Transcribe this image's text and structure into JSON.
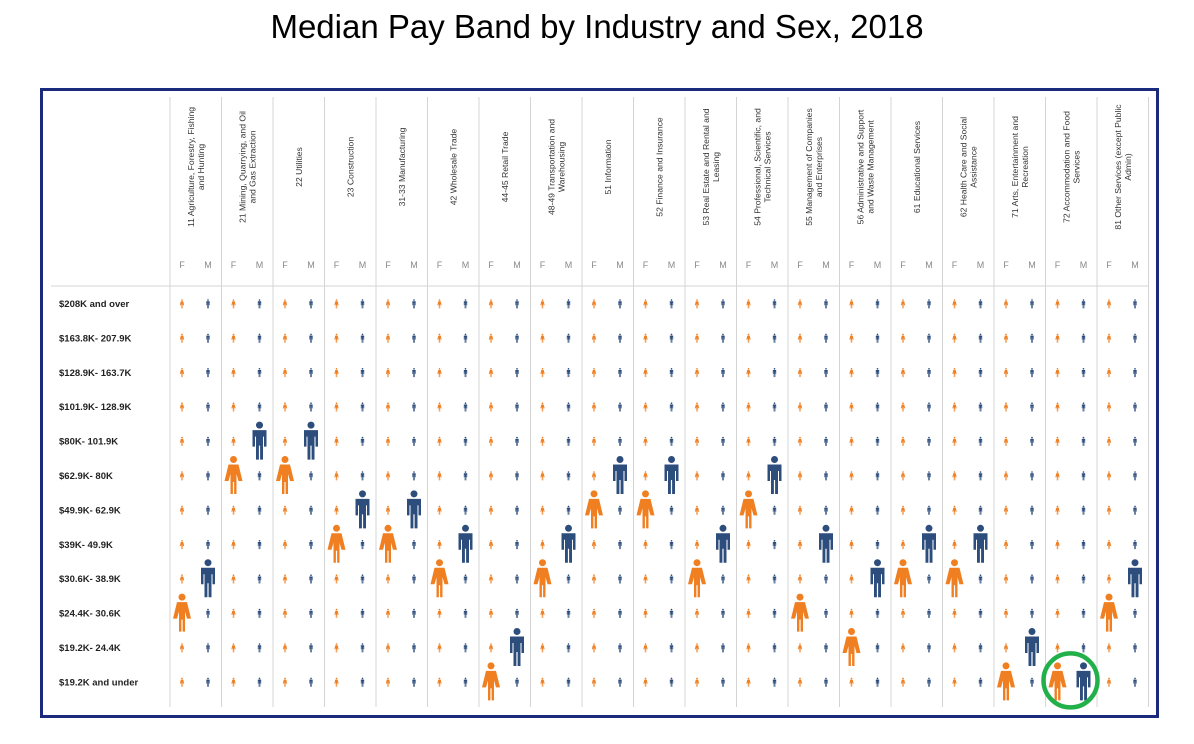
{
  "title": "Median Pay Band by Industry and Sex, 2018",
  "colors": {
    "female": "#f07f22",
    "male": "#2d4d7d",
    "frame": "#1a2a7c",
    "highlight": "#22b04a"
  },
  "icons": {
    "female": "female-person-icon",
    "male": "male-person-icon"
  },
  "sexes": [
    "F",
    "M"
  ],
  "chart_data": {
    "type": "pictogram-grid",
    "title": "Median Pay Band by Industry and Sex, 2018",
    "bands": [
      "$208K and over",
      "$163.8K- 207.9K",
      "$128.9K- 163.7K",
      "$101.9K- 128.9K",
      "$80K- 101.9K",
      "$62.9K- 80K",
      "$49.9K- 62.9K",
      "$39K- 49.9K",
      "$30.6K- 38.9K",
      "$24.4K- 30.6K",
      "$19.2K- 24.4K",
      "$19.2K and under"
    ],
    "industries": [
      {
        "name": [
          "11 Agriculture, Forestry, Fishing",
          "and Hunting"
        ],
        "F": "$24.4K- 30.6K",
        "M": "$30.6K- 38.9K"
      },
      {
        "name": [
          "21 Mining, Quarrying, and Oil",
          "and Gas Extraction"
        ],
        "F": "$62.9K- 80K",
        "M": "$80K- 101.9K"
      },
      {
        "name": [
          "22 Utilities"
        ],
        "F": "$62.9K- 80K",
        "M": "$80K- 101.9K"
      },
      {
        "name": [
          "23 Construction"
        ],
        "F": "$39K- 49.9K",
        "M": "$49.9K- 62.9K"
      },
      {
        "name": [
          "31-33 Manufacturing"
        ],
        "F": "$39K- 49.9K",
        "M": "$49.9K- 62.9K"
      },
      {
        "name": [
          "42 Wholesale Trade"
        ],
        "F": "$30.6K- 38.9K",
        "M": "$39K- 49.9K"
      },
      {
        "name": [
          "44-45 Retail Trade"
        ],
        "F": "$19.2K and under",
        "M": "$19.2K- 24.4K"
      },
      {
        "name": [
          "48-49 Transportation and",
          "Warehousing"
        ],
        "F": "$30.6K- 38.9K",
        "M": "$39K- 49.9K"
      },
      {
        "name": [
          "51 Information"
        ],
        "F": "$49.9K- 62.9K",
        "M": "$62.9K- 80K"
      },
      {
        "name": [
          "52 Finance and Insurance"
        ],
        "F": "$49.9K- 62.9K",
        "M": "$62.9K- 80K"
      },
      {
        "name": [
          "53 Real Estate and Rental and",
          "Leasing"
        ],
        "F": "$30.6K- 38.9K",
        "M": "$39K- 49.9K"
      },
      {
        "name": [
          "54 Professional, Scientific, and",
          "Technical Services"
        ],
        "F": "$49.9K- 62.9K",
        "M": "$62.9K- 80K"
      },
      {
        "name": [
          "55 Management of Companies",
          "and Enterprises"
        ],
        "F": "$24.4K- 30.6K",
        "M": "$39K- 49.9K"
      },
      {
        "name": [
          "56 Administrative and Support",
          "and Waste Management"
        ],
        "F": "$19.2K- 24.4K",
        "M": "$30.6K- 38.9K"
      },
      {
        "name": [
          "61 Educational Services"
        ],
        "F": "$30.6K- 38.9K",
        "M": "$39K- 49.9K"
      },
      {
        "name": [
          "62 Health Care and Social",
          "Assistance"
        ],
        "F": "$30.6K- 38.9K",
        "M": "$39K- 49.9K"
      },
      {
        "name": [
          "71 Arts, Entertainment and",
          "Recreation"
        ],
        "F": "$19.2K and under",
        "M": "$19.2K- 24.4K"
      },
      {
        "name": [
          "72 Accommodation and Food",
          "Services"
        ],
        "F": "$19.2K and under",
        "M": "$19.2K and under",
        "highlighted": true
      },
      {
        "name": [
          "81 Other Services (except Public",
          "Admin)"
        ],
        "F": "$24.4K- 30.6K",
        "M": "$30.6K- 38.9K"
      }
    ]
  }
}
